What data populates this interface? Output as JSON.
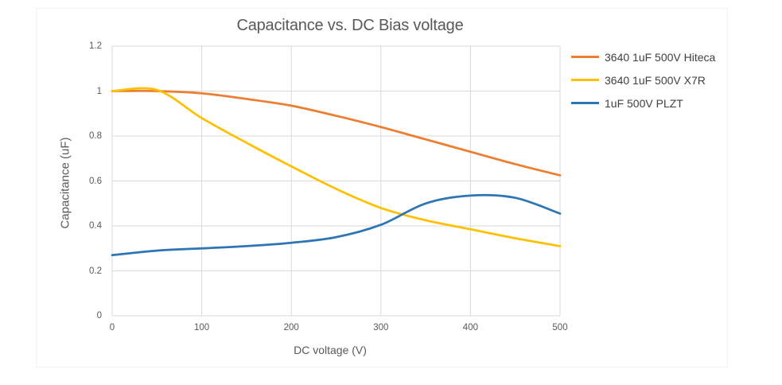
{
  "page": {
    "background": "#ffffff"
  },
  "chart_data": {
    "type": "line",
    "title": "Capacitance vs. DC Bias voltage",
    "xlabel": "DC voltage (V)",
    "ylabel": "Capacitance (uF)",
    "xlim": [
      0,
      500
    ],
    "ylim": [
      0,
      1.2
    ],
    "x_ticks": [
      0,
      100,
      200,
      300,
      400,
      500
    ],
    "x_tick_labels": [
      "0",
      "100",
      "200",
      "300",
      "400",
      "500"
    ],
    "y_ticks": [
      0,
      0.2,
      0.4,
      0.6,
      0.8,
      1,
      1.2
    ],
    "y_tick_labels": [
      "0",
      "0.2",
      "0.4",
      "0.6",
      "0.8",
      "1",
      "1.2"
    ],
    "grid": true,
    "legend_position": "right",
    "x": [
      0,
      50,
      100,
      150,
      200,
      250,
      300,
      350,
      400,
      450,
      500
    ],
    "series": [
      {
        "name": "3640 1uF 500V Hiteca",
        "color": "#ED7D31",
        "values": [
          1.0,
          1.0,
          0.99,
          0.965,
          0.935,
          0.89,
          0.84,
          0.785,
          0.73,
          0.675,
          0.625
        ]
      },
      {
        "name": "3640 1uF 500V X7R",
        "color": "#FFC000",
        "values": [
          1.0,
          1.005,
          0.88,
          0.77,
          0.665,
          0.565,
          0.48,
          0.425,
          0.385,
          0.345,
          0.31
        ]
      },
      {
        "name": "1uF 500V PLZT",
        "color": "#2E75B6",
        "values": [
          0.27,
          0.29,
          0.3,
          0.31,
          0.325,
          0.35,
          0.405,
          0.5,
          0.535,
          0.525,
          0.455
        ]
      }
    ],
    "colors": {
      "gridline": "#D9D9D9",
      "plot_border": "#D9D9D9",
      "axis_text": "#595959",
      "title_text": "#595959",
      "legend_text": "#404040"
    }
  }
}
